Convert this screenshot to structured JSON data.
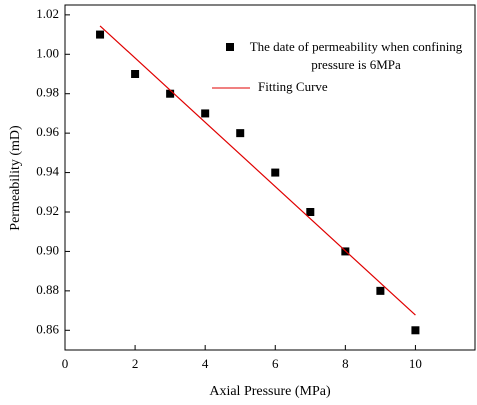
{
  "chart_data": {
    "type": "scatter",
    "x_label": "Axial Pressure (MPa)",
    "y_label": "Permeability (mD)",
    "xlim": [
      0,
      11.7
    ],
    "ylim": [
      0.85,
      1.025
    ],
    "xticks": [
      0,
      2,
      4,
      6,
      8,
      10
    ],
    "yticks": [
      {
        "value": 0.86,
        "label": "0.86"
      },
      {
        "value": 0.88,
        "label": "0.88"
      },
      {
        "value": 0.9,
        "label": "0.90"
      },
      {
        "value": 0.92,
        "label": "0.92"
      },
      {
        "value": 0.94,
        "label": "0.94"
      },
      {
        "value": 0.96,
        "label": "0.96"
      },
      {
        "value": 0.98,
        "label": "0.98"
      },
      {
        "value": 1.0,
        "label": "1.00"
      },
      {
        "value": 1.02,
        "label": "1.02"
      }
    ],
    "series": [
      {
        "name": "The date of permeability when confining pressure is 6MPa",
        "color": "#000000",
        "marker": "square",
        "x": [
          1,
          2,
          3,
          4,
          5,
          6,
          7,
          8,
          9,
          10
        ],
        "values": [
          1.01,
          0.99,
          0.98,
          0.97,
          0.96,
          0.94,
          0.92,
          0.9,
          0.88,
          0.86
        ]
      },
      {
        "name": "Fitting Curve",
        "color": "#e00000",
        "marker": "line",
        "x": [
          1,
          10
        ],
        "values": [
          1.0144,
          0.8677
        ]
      }
    ]
  }
}
